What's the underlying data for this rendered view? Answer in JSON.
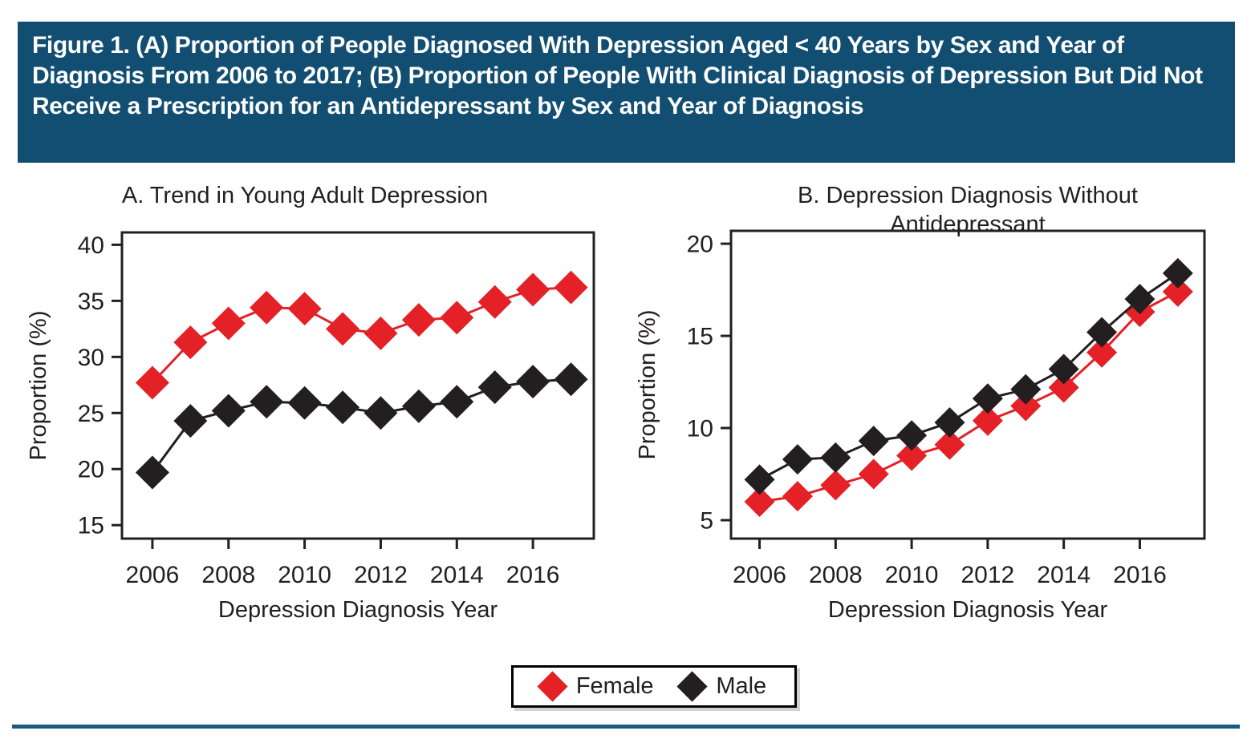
{
  "header": {
    "title": "Figure 1. (A) Proportion of People Diagnosed With Depression Aged < 40 Years by Sex and Year of Diagnosis From 2006 to 2017; (B) Proportion of People With Clinical Diagnosis of Depression But Did Not Receive a Prescription for an Antidepressant by Sex and Year of Diagnosis"
  },
  "colors": {
    "header_bg": "#114e71",
    "rule": "#175a83",
    "axis_text": "#231f20",
    "female": "#e32126",
    "male": "#231f20"
  },
  "legend": {
    "items": [
      {
        "label": "Female",
        "color": "#e32126",
        "marker": "diamond"
      },
      {
        "label": "Male",
        "color": "#231f20",
        "marker": "diamond"
      }
    ]
  },
  "chart_data": [
    {
      "id": "A",
      "type": "line",
      "title": "A. Trend in Young Adult Depression",
      "xlabel": "Depression Diagnosis Year",
      "ylabel": "Proportion (%)",
      "x": [
        2006,
        2007,
        2008,
        2009,
        2010,
        2011,
        2012,
        2013,
        2014,
        2015,
        2016,
        2017
      ],
      "x_ticks": [
        2006,
        2008,
        2010,
        2012,
        2014,
        2016
      ],
      "x_tick_labels": [
        "2006",
        "2008",
        "2010",
        "2012",
        "2014",
        "2016"
      ],
      "y_ticks": [
        15,
        20,
        25,
        30,
        35,
        40
      ],
      "xlim": [
        2005.2,
        2017.6
      ],
      "ylim": [
        13.8,
        41.1
      ],
      "grid": false,
      "marker": "diamond",
      "series": [
        {
          "name": "Female",
          "color": "#e32126",
          "values": [
            27.7,
            31.3,
            33.0,
            34.4,
            34.3,
            32.5,
            32.1,
            33.3,
            33.5,
            34.9,
            36.0,
            36.2
          ]
        },
        {
          "name": "Male",
          "color": "#231f20",
          "values": [
            19.7,
            24.3,
            25.2,
            26.0,
            25.9,
            25.5,
            25.0,
            25.6,
            26.0,
            27.3,
            27.8,
            28.0
          ]
        }
      ]
    },
    {
      "id": "B",
      "type": "line",
      "title": "B. Depression Diagnosis Without Antidepressant",
      "xlabel": "Depression Diagnosis Year",
      "ylabel": "Proportion (%)",
      "x": [
        2006,
        2007,
        2008,
        2009,
        2010,
        2011,
        2012,
        2013,
        2014,
        2015,
        2016,
        2017
      ],
      "x_ticks": [
        2006,
        2008,
        2010,
        2012,
        2014,
        2016
      ],
      "x_tick_labels": [
        "2006",
        "2008",
        "2010",
        "2012",
        "2014",
        "2016"
      ],
      "y_ticks": [
        5,
        10,
        15,
        20
      ],
      "xlim": [
        2005.25,
        2017.7
      ],
      "ylim": [
        4.0,
        20.7
      ],
      "grid": false,
      "marker": "diamond",
      "series": [
        {
          "name": "Female",
          "color": "#e32126",
          "values": [
            6.0,
            6.3,
            6.9,
            7.5,
            8.5,
            9.1,
            10.4,
            11.2,
            12.2,
            14.1,
            16.3,
            17.4
          ]
        },
        {
          "name": "Male",
          "color": "#231f20",
          "values": [
            7.2,
            8.3,
            8.4,
            9.3,
            9.6,
            10.3,
            11.6,
            12.1,
            13.2,
            15.2,
            17.0,
            18.4
          ]
        }
      ]
    }
  ]
}
